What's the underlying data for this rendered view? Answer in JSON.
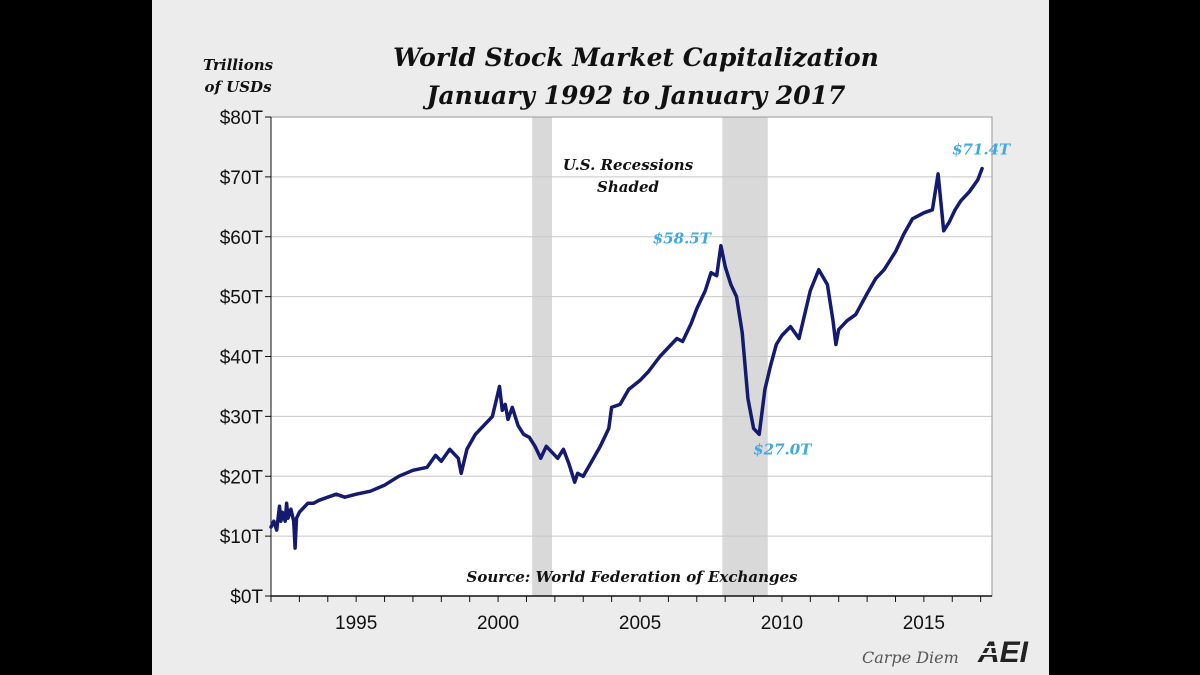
{
  "chart_data": {
    "type": "line",
    "title": "World Stock Market Capitalization",
    "subtitle": "January 1992 to January 2017",
    "ylabel": "Trillions of USDs",
    "ylabel_lines": [
      "Trillions",
      "of USDs"
    ],
    "ylim": [
      0,
      80
    ],
    "xlim": [
      1992.0,
      2017.4
    ],
    "y_ticks": [
      0,
      10,
      20,
      30,
      40,
      50,
      60,
      70,
      80
    ],
    "y_tick_labels": [
      "$0T",
      "$10T",
      "$20T",
      "$30T",
      "$40T",
      "$50T",
      "$60T",
      "$70T",
      "$80T"
    ],
    "x_ticks": [
      1995,
      2000,
      2005,
      2010,
      2015
    ],
    "x_tick_labels": [
      "1995",
      "2000",
      "2005",
      "2010",
      "2015"
    ],
    "grid": true,
    "line_color": "#141a6e",
    "recession_color": "#d9d9d9",
    "recessions": [
      [
        2001.2,
        2001.9
      ],
      [
        2007.9,
        2009.5
      ]
    ],
    "recession_note": [
      "U.S. Recessions",
      "Shaded"
    ],
    "source": "Source: World Federation of Exchanges",
    "series": [
      {
        "x": [
          1992.0,
          1992.1,
          1992.2,
          1992.3,
          1992.35,
          1992.4,
          1992.5,
          1992.55,
          1992.6,
          1992.7,
          1992.8,
          1992.85,
          1992.9,
          1993.0,
          1993.1,
          1993.3,
          1993.5,
          1993.7,
          1994.0,
          1994.3,
          1994.6,
          1995.0,
          1995.5,
          1996.0,
          1996.5,
          1997.0,
          1997.5,
          1997.8,
          1998.0,
          1998.3,
          1998.6,
          1998.7,
          1998.9,
          1999.2,
          1999.5,
          1999.8,
          1999.95,
          2000.05,
          2000.15,
          2000.25,
          2000.35,
          2000.5,
          2000.7,
          2000.9,
          2001.1,
          2001.3,
          2001.5,
          2001.7,
          2001.9,
          2002.1,
          2002.3,
          2002.5,
          2002.7,
          2002.8,
          2003.0,
          2003.3,
          2003.6,
          2003.9,
          2004.0,
          2004.3,
          2004.6,
          2005.0,
          2005.3,
          2005.7,
          2006.0,
          2006.3,
          2006.5,
          2006.8,
          2007.0,
          2007.3,
          2007.5,
          2007.7,
          2007.85,
          2008.0,
          2008.2,
          2008.4,
          2008.6,
          2008.8,
          2009.0,
          2009.2,
          2009.4,
          2009.6,
          2009.8,
          2010.0,
          2010.3,
          2010.6,
          2011.0,
          2011.3,
          2011.6,
          2011.8,
          2011.9,
          2012.0,
          2012.3,
          2012.6,
          2013.0,
          2013.3,
          2013.6,
          2014.0,
          2014.3,
          2014.6,
          2015.0,
          2015.3,
          2015.5,
          2015.7,
          2015.9,
          2016.1,
          2016.3,
          2016.6,
          2016.9,
          2017.05
        ],
        "y": [
          11.5,
          12.5,
          11.0,
          15.0,
          12.5,
          14.0,
          12.5,
          15.5,
          13.0,
          14.5,
          12.5,
          8.0,
          13.0,
          14.0,
          14.5,
          15.5,
          15.5,
          16.0,
          16.5,
          17.0,
          16.5,
          17.0,
          17.5,
          18.5,
          20.0,
          21.0,
          21.5,
          23.5,
          22.5,
          24.5,
          23.0,
          20.5,
          24.5,
          27.0,
          28.5,
          30.0,
          33.0,
          35.0,
          31.0,
          32.0,
          29.5,
          31.5,
          28.5,
          27.0,
          26.5,
          25.0,
          23.0,
          25.0,
          24.0,
          23.0,
          24.5,
          22.0,
          19.0,
          20.5,
          20.0,
          22.5,
          25.0,
          28.0,
          31.5,
          32.0,
          34.5,
          36.0,
          37.5,
          40.0,
          41.5,
          43.0,
          42.5,
          45.5,
          48.0,
          51.0,
          54.0,
          53.5,
          58.5,
          55.0,
          52.0,
          50.0,
          44.0,
          33.0,
          28.0,
          27.0,
          34.5,
          38.5,
          42.0,
          43.5,
          45.0,
          43.0,
          51.0,
          54.5,
          52.0,
          46.0,
          42.0,
          44.5,
          46.0,
          47.0,
          50.5,
          53.0,
          54.5,
          57.5,
          60.5,
          63.0,
          64.0,
          64.5,
          70.5,
          61.0,
          62.5,
          64.5,
          66.0,
          67.5,
          69.5,
          71.4
        ]
      }
    ],
    "annotations": [
      {
        "text": "$58.5T",
        "x": 2007.85,
        "y": 58.5,
        "pos": "left"
      },
      {
        "text": "$27.0T",
        "x": 2009.2,
        "y": 27.0,
        "pos": "below-right"
      },
      {
        "text": "$71.4T",
        "x": 2017.05,
        "y": 71.4,
        "pos": "above"
      }
    ]
  },
  "credit": {
    "blog": "Carpe Diem",
    "logo_text": "AEI"
  }
}
